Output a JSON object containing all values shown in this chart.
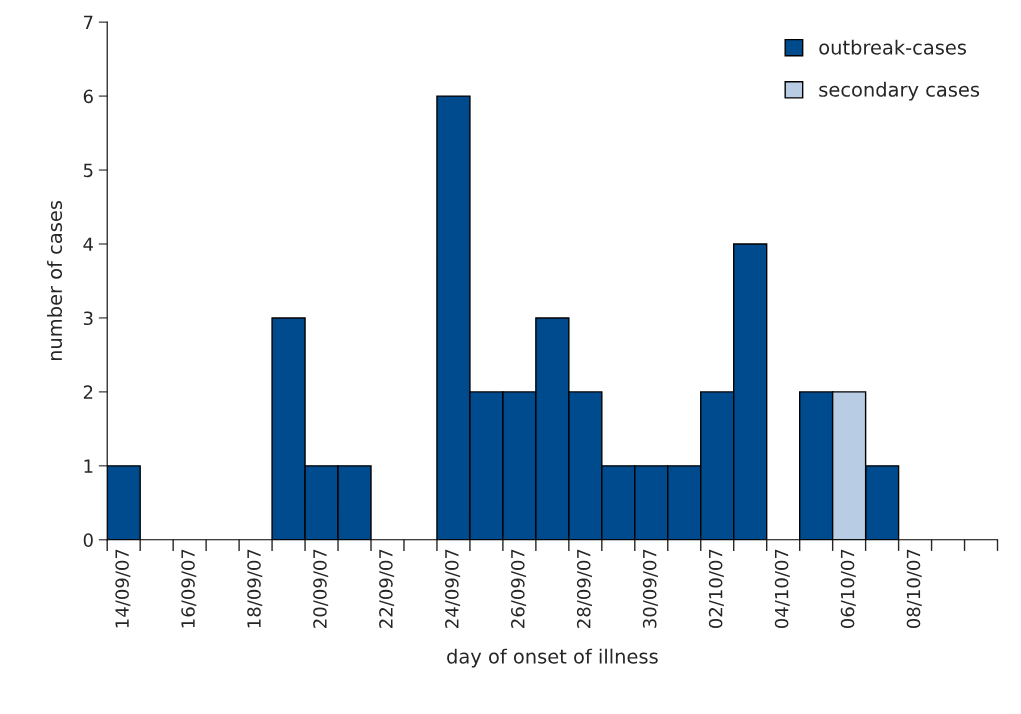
{
  "chart_data": {
    "type": "bar",
    "stacked": true,
    "xlabel": "day of onset of illness",
    "ylabel": "number of cases",
    "categories": [
      "14/09/07",
      null,
      "16/09/07",
      null,
      "18/09/07",
      null,
      "20/09/07",
      null,
      "22/09/07",
      null,
      "24/09/07",
      null,
      "26/09/07",
      null,
      "28/09/07",
      null,
      "30/09/07",
      null,
      "02/10/07",
      null,
      "04/10/07",
      null,
      "06/10/07",
      null,
      "08/10/07",
      null,
      null
    ],
    "series": [
      {
        "name": "outbreak-cases",
        "color": "#004b8d",
        "values": [
          1,
          0,
          0,
          0,
          0,
          3,
          1,
          1,
          0,
          0,
          6,
          2,
          2,
          3,
          2,
          1,
          1,
          1,
          2,
          4,
          0,
          2,
          0,
          1,
          0,
          0,
          0
        ]
      },
      {
        "name": "secondary cases",
        "color": "#b8cce4",
        "values": [
          0,
          0,
          0,
          0,
          0,
          0,
          0,
          0,
          0,
          0,
          0,
          0,
          0,
          0,
          0,
          0,
          0,
          0,
          0,
          0,
          0,
          0,
          2,
          0,
          0,
          0,
          0
        ]
      }
    ],
    "ylim": [
      0,
      7
    ],
    "yticks": [
      0,
      1,
      2,
      3,
      4,
      5,
      6,
      7
    ],
    "grid": false,
    "legend": "top right"
  }
}
